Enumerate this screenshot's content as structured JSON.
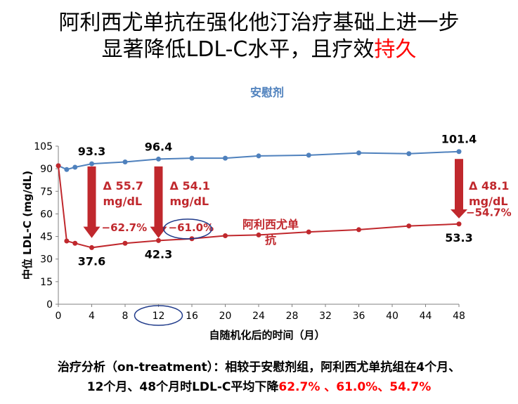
{
  "title": {
    "line1": "阿利西尤单抗在强化他汀治疗基础上进一步",
    "line2_main": "显著降低LDL-C水平，且疗效",
    "line2_highlight": "持久"
  },
  "chart_data": {
    "type": "line",
    "xlabel": "自随机化后的时间（月）",
    "ylabel": "中位 LDL-C (mg/dL)",
    "xlim": [
      0,
      48
    ],
    "ylim": [
      0,
      105
    ],
    "x_ticks": [
      0,
      4,
      8,
      12,
      16,
      20,
      24,
      28,
      32,
      36,
      40,
      44,
      48
    ],
    "y_ticks": [
      0,
      15,
      30,
      45,
      60,
      75,
      90,
      105
    ],
    "grid": false,
    "series": [
      {
        "name": "安慰剂",
        "color": "#4f81bd",
        "x": [
          0,
          1,
          2,
          4,
          8,
          12,
          16,
          20,
          24,
          30,
          36,
          42,
          48
        ],
        "y": [
          92,
          89.5,
          91,
          93.3,
          94.5,
          96.4,
          97,
          97,
          98.5,
          99,
          100.5,
          100,
          101.4
        ]
      },
      {
        "name": "阿利西尤单抗",
        "color": "#c0282d",
        "x": [
          0,
          1,
          2,
          4,
          8,
          12,
          16,
          20,
          24,
          30,
          36,
          42,
          48
        ],
        "y": [
          92,
          42,
          40.5,
          37.6,
          40.5,
          42.3,
          43.5,
          45.5,
          46,
          48,
          49.5,
          52,
          53.3
        ]
      }
    ],
    "annotations": {
      "placebo_values": [
        {
          "x": 4,
          "y": 93.3,
          "label": "93.3"
        },
        {
          "x": 12,
          "y": 96.4,
          "label": "96.4"
        },
        {
          "x": 48,
          "y": 101.4,
          "label": "101.4"
        }
      ],
      "drug_values": [
        {
          "x": 4,
          "y": 37.6,
          "label": "37.6"
        },
        {
          "x": 12,
          "y": 42.3,
          "label": "42.3"
        },
        {
          "x": 48,
          "y": 53.3,
          "label": "53.3"
        }
      ],
      "deltas": [
        {
          "x": 4,
          "line1": "Δ 55.7",
          "line2": "mg/dL",
          "pct": "−62.7%"
        },
        {
          "x": 12,
          "line1": "Δ 54.1",
          "line2": "mg/dL",
          "pct": "−61.0%"
        },
        {
          "x": 48,
          "line1": "Δ 48.1",
          "line2": "mg/dL",
          "pct": "−54.7%"
        }
      ],
      "drug_label_line1": "阿利西尤单",
      "drug_label_line2": "抗"
    }
  },
  "analysis": {
    "line1": "治疗分析（on-treatment）：相较于安慰剂组，阿利西尤单抗组在4个月、",
    "line2_main": "12个月、48个月时LDL-C平均下降",
    "line2_highlight": "62.7% 、61.0%、54.7%"
  }
}
